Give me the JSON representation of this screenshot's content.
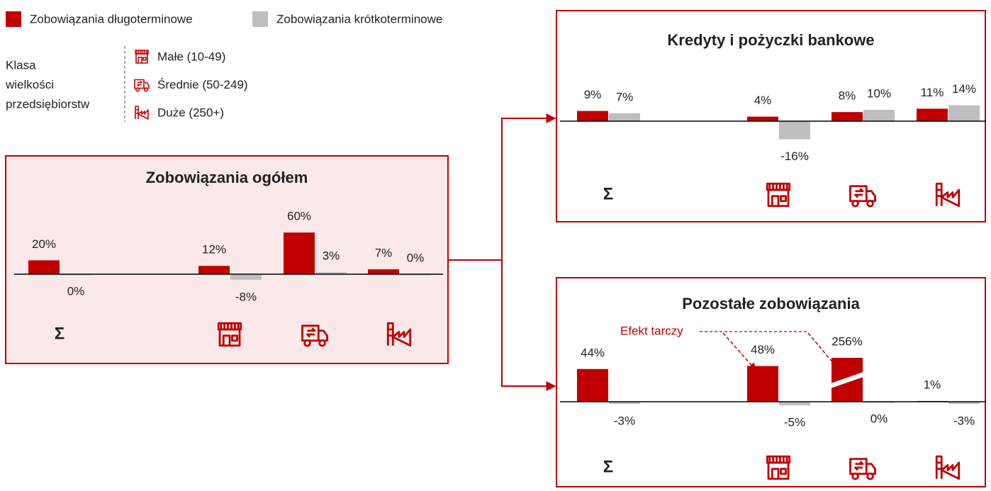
{
  "legend": [
    {
      "name": "Zobowiązania długoterminowe",
      "color": "#c00000"
    },
    {
      "name": "Zobowiązania krótkoterminowe",
      "color": "#bfbfbf"
    }
  ],
  "size_class": {
    "label": [
      "Klasa",
      "wielkości",
      "przedsiębiorstw"
    ],
    "items": [
      "Małe (10-49)",
      "Średnie (50-249)",
      "Duże (250+)"
    ]
  },
  "chart_data": [
    {
      "type": "bar",
      "title": "Zobowiązania ogółem",
      "categories": [
        "Σ",
        null,
        null,
        null
      ],
      "series": [
        {
          "color": "#c00000",
          "values": [
            20,
            12,
            60,
            7
          ],
          "value_labels": [
            "20%",
            "12%",
            "60%",
            "7%"
          ]
        },
        {
          "color": "#bfbfbf",
          "values": [
            0,
            -8,
            3,
            0
          ],
          "value_labels": [
            "0%",
            "-8%",
            "3%",
            "0%"
          ]
        }
      ]
    },
    {
      "type": "bar",
      "title": "Kredyty i pożyczki bankowe",
      "categories": [
        "Σ",
        null,
        null,
        null
      ],
      "series": [
        {
          "color": "#c00000",
          "values": [
            9,
            4,
            8,
            11
          ],
          "value_labels": [
            "9%",
            "4%",
            "8%",
            "11%"
          ]
        },
        {
          "color": "#bfbfbf",
          "values": [
            7,
            -16,
            10,
            14
          ],
          "value_labels": [
            "7%",
            "-16%",
            "10%",
            "14%"
          ]
        }
      ]
    },
    {
      "type": "bar",
      "title": "Pozostałe zobowiązania",
      "categories": [
        "Σ",
        null,
        null,
        null
      ],
      "series": [
        {
          "color": "#c00000",
          "values": [
            44,
            48,
            256,
            1
          ],
          "value_labels": [
            "44%",
            "48%",
            "256%",
            "1%"
          ]
        },
        {
          "color": "#bfbfbf",
          "values": [
            -3,
            -5,
            0,
            -3
          ],
          "value_labels": [
            "-3%",
            "-5%",
            "0%",
            "-3%"
          ]
        }
      ],
      "annotation": "Efekt tarczy"
    }
  ]
}
